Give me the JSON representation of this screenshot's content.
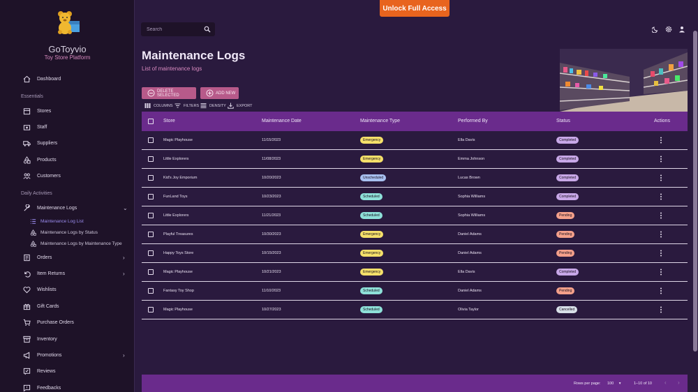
{
  "header": {
    "unlock_label": "Unlock Full Access",
    "search_placeholder": "Search"
  },
  "brand": {
    "name": "GoToyvio",
    "subtitle": "Toy Store Platform"
  },
  "sidebar": {
    "dashboard": "Dashboard",
    "essentials_label": "Essentials",
    "essentials": [
      "Stores",
      "Staff",
      "Suppliers",
      "Products",
      "Customers"
    ],
    "daily_label": "Daily Activities",
    "maintenance": "Maintenance Logs",
    "sub": [
      "Maintenance Log List",
      "Maintenance Logs by Status",
      "Maintenance Logs by Maintenance Type"
    ],
    "more": [
      "Orders",
      "Item Returns",
      "Wishlists",
      "Gift Cards",
      "Purchase Orders",
      "Inventory",
      "Promotions",
      "Reviews",
      "Feedbacks"
    ]
  },
  "page": {
    "title": "Maintenance Logs",
    "subtitle": "List of maintenance logs"
  },
  "actions": {
    "delete": "DELETE SELECTED",
    "add": "ADD NEW"
  },
  "toolbar": {
    "columns": "COLUMNS",
    "filters": "FILTERS",
    "density": "DENSITY",
    "export": "EXPORT"
  },
  "table": {
    "headers": [
      "Store",
      "Maintenance Date",
      "Maintenance Type",
      "Performed By",
      "Status",
      "Actions"
    ],
    "rows": [
      {
        "store": "Magic Playhouse",
        "date": "11/15/2023",
        "type": "Emergency",
        "by": "Ella Davis",
        "status": "Completed"
      },
      {
        "store": "Little Explorers",
        "date": "11/08/2023",
        "type": "Emergency",
        "by": "Emma Johnson",
        "status": "Completed"
      },
      {
        "store": "Kid's Joy Emporium",
        "date": "10/20/2023",
        "type": "Unscheduled",
        "by": "Lucas Brown",
        "status": "Completed"
      },
      {
        "store": "FunLand Toys",
        "date": "10/23/2023",
        "type": "Scheduled",
        "by": "Sophia Williams",
        "status": "Completed"
      },
      {
        "store": "Little Explorers",
        "date": "11/21/2023",
        "type": "Scheduled",
        "by": "Sophia Williams",
        "status": "Pending"
      },
      {
        "store": "Playful Treasures",
        "date": "10/30/2023",
        "type": "Emergency",
        "by": "Daniel Adams",
        "status": "Pending"
      },
      {
        "store": "Happy Toys Store",
        "date": "10/15/2023",
        "type": "Emergency",
        "by": "Daniel Adams",
        "status": "Pending"
      },
      {
        "store": "Magic Playhouse",
        "date": "10/21/2023",
        "type": "Emergency",
        "by": "Ella Davis",
        "status": "Completed"
      },
      {
        "store": "Fantasy Toy Shop",
        "date": "11/10/2023",
        "type": "Scheduled",
        "by": "Daniel Adams",
        "status": "Pending"
      },
      {
        "store": "Magic Playhouse",
        "date": "10/27/2023",
        "type": "Scheduled",
        "by": "Olivia Taylor",
        "status": "Cancelled"
      }
    ]
  },
  "footer": {
    "rows_per_page_label": "Rows per page:",
    "rows_per_page": "100",
    "range": "1–10 of 10"
  },
  "colors": {
    "Emergency": "#f5e06a",
    "Unscheduled": "#a8c0f0",
    "Scheduled": "#8ee0d8",
    "Completed": "#c8a8e8",
    "Pending": "#f4a08a",
    "Cancelled": "#d8e0e8"
  }
}
